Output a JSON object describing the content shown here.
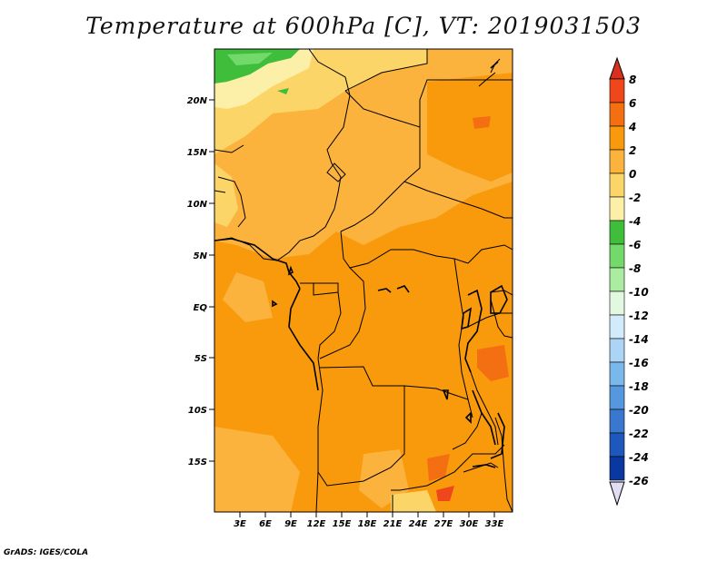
{
  "title": "Temperature at 600hPa [C], VT: 2019031503",
  "credit": "GrADS: IGES/COLA",
  "map": {
    "lat_ticks": [
      "20N",
      "15N",
      "10N",
      "5N",
      "EQ",
      "5S",
      "10S",
      "15S"
    ],
    "lon_ticks": [
      "3E",
      "6E",
      "9E",
      "12E",
      "15E",
      "18E",
      "21E",
      "24E",
      "27E",
      "30E",
      "33E"
    ]
  },
  "colorbar": {
    "labels": [
      "8",
      "6",
      "4",
      "2",
      "0",
      "-2",
      "-4",
      "-6",
      "-8",
      "-10",
      "-12",
      "-14",
      "-16",
      "-18",
      "-20",
      "-22",
      "-24",
      "-26"
    ],
    "colors": [
      "#d7301f",
      "#f0461b",
      "#f36f12",
      "#f89a0b",
      "#fbb33d",
      "#fcd568",
      "#fcf0a8",
      "#3fbe3c",
      "#74d96b",
      "#aaeda0",
      "#e3f8e0",
      "#d2ebfa",
      "#acd5f5",
      "#7ab7eb",
      "#5698e0",
      "#3a78d0",
      "#1f58bd",
      "#0a38a0",
      "#090c6a"
    ],
    "top_color": "#d7301f",
    "bottom_color": "#e0ddf5"
  }
}
